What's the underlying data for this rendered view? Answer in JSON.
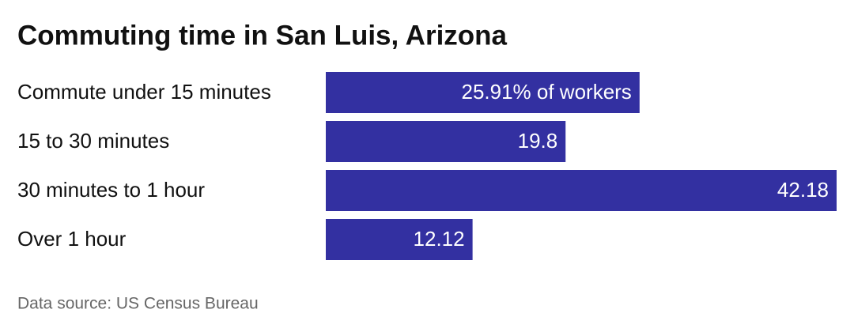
{
  "chart_data": {
    "type": "bar",
    "orientation": "horizontal",
    "title": "Commuting time in San Luis, Arizona",
    "categories": [
      "Commute under 15 minutes",
      "15 to 30 minutes",
      "30 minutes to 1 hour",
      "Over 1 hour"
    ],
    "values": [
      25.91,
      19.8,
      42.18,
      12.12
    ],
    "value_labels": [
      "25.91% of workers",
      "19.8",
      "42.18",
      "12.12"
    ],
    "color": "#3330a1",
    "source": "Data source: US Census Bureau"
  }
}
